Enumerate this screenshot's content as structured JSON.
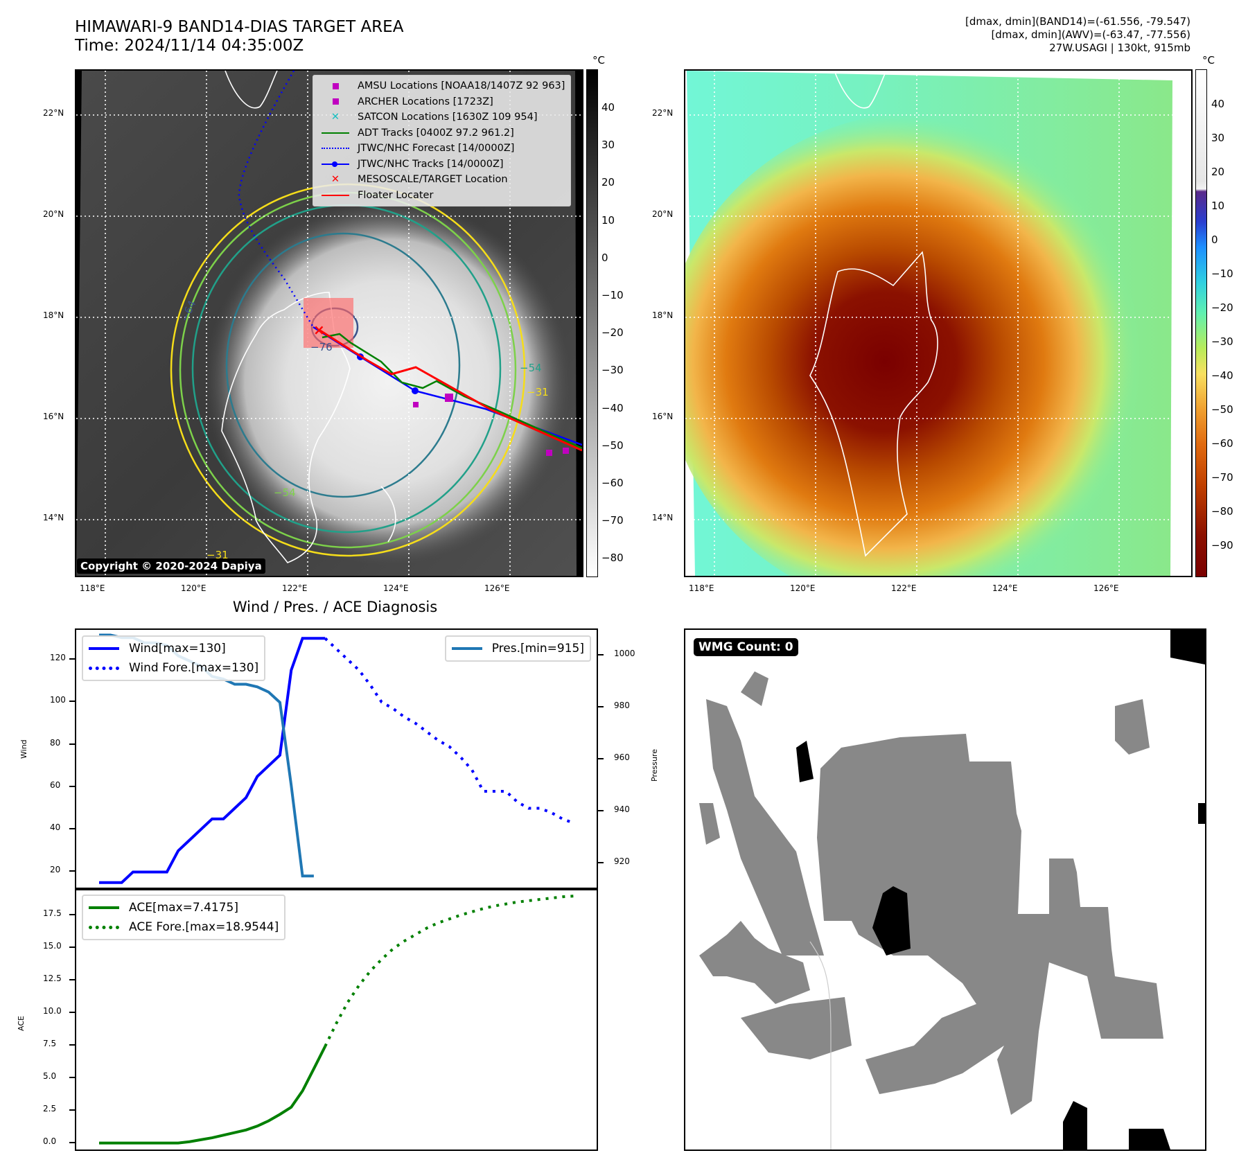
{
  "header": {
    "title_line1": "HIMAWARI-9 BAND14-DIAS TARGET AREA",
    "title_line2": "Time: 2024/11/14 04:35:00Z",
    "info_line1": "[dmax, dmin](BAND14)=(-61.556, -79.547)",
    "info_line2": "[dmax, dmin](AWV)=(-63.47, -77.556)",
    "info_line3": "27W.USAGI | 130kt, 915mb"
  },
  "map_axes": {
    "lat_ticks": [
      "22°N",
      "20°N",
      "18°N",
      "16°N",
      "14°N"
    ],
    "lon_ticks": [
      "118°E",
      "120°E",
      "122°E",
      "124°E",
      "126°E"
    ]
  },
  "ir_panel": {
    "colorbar_unit": "°C",
    "colorbar_ticks": [
      "40",
      "30",
      "20",
      "10",
      "0",
      "−10",
      "−20",
      "−30",
      "−40",
      "−50",
      "−60",
      "−70",
      "−80"
    ],
    "contour_labels": [
      "−64",
      "−76",
      "−31",
      "−54",
      "−31",
      "−54"
    ],
    "copyright": "Copyright © 2020-2024 Dapiya",
    "legend": [
      {
        "icon": "square-marker-icon",
        "color": "#c000c0",
        "label": "AMSU Locations [NOAA18/1407Z 92 963]"
      },
      {
        "icon": "square-marker-icon",
        "color": "#c000c0",
        "label": "ARCHER Locations [1723Z]"
      },
      {
        "icon": "x-marker-icon",
        "color": "#17bfc0",
        "label": "SATCON Locations [1630Z 109 954]"
      },
      {
        "icon": "solid-line-icon",
        "color": "#008000",
        "label": "ADT Tracks [0400Z 97.2 961.2]"
      },
      {
        "icon": "dotted-line-icon",
        "color": "#0000ff",
        "label": "JTWC/NHC Forecast [14/0000Z]"
      },
      {
        "icon": "line-dot-icon",
        "color": "#0000ff",
        "label": "JTWC/NHC Tracks [14/0000Z]"
      },
      {
        "icon": "x-marker-icon",
        "color": "#ff0000",
        "label": "MESOSCALE/TARGET Location"
      },
      {
        "icon": "solid-line-icon",
        "color": "#ff0000",
        "label": "Floater Locater"
      }
    ]
  },
  "awv_panel": {
    "colorbar_unit": "°C",
    "colorbar_ticks": [
      "40",
      "30",
      "20",
      "10",
      "0",
      "−10",
      "−20",
      "−30",
      "−40",
      "−50",
      "−60",
      "−70",
      "−80",
      "−90"
    ]
  },
  "wmg_panel": {
    "badge": "WMG Count: 0"
  },
  "chart_data": [
    {
      "type": "line",
      "title": "Wind / Pres. / ACE Diagnosis",
      "ylabel": "Wind",
      "y2label": "Pressure",
      "ylim": [
        12,
        134
      ],
      "y2lim": [
        910,
        1010
      ],
      "yticks": [
        "120",
        "100",
        "80",
        "60",
        "40",
        "20"
      ],
      "y2ticks": [
        "1000",
        "980",
        "960",
        "940",
        "920"
      ],
      "x": [
        0,
        1,
        2,
        3,
        4,
        5,
        6,
        7,
        8,
        9,
        10,
        11,
        12,
        13,
        14,
        15,
        16,
        17,
        18,
        19,
        20,
        21,
        22,
        23,
        24,
        25,
        26,
        27,
        28,
        29,
        30,
        31,
        32,
        33,
        34,
        35,
        36,
        37,
        38,
        39,
        40,
        41,
        42
      ],
      "series": [
        {
          "name": "Wind[max=130]",
          "axis": "left",
          "style": "solid",
          "color": "#0000ff",
          "x": [
            0,
            1,
            2,
            3,
            4,
            5,
            6,
            7,
            8,
            9,
            10,
            11,
            12,
            13,
            14,
            15,
            16,
            17,
            18,
            19,
            20
          ],
          "values": [
            15,
            15,
            15,
            20,
            20,
            20,
            20,
            30,
            35,
            40,
            45,
            45,
            50,
            55,
            65,
            70,
            75,
            115,
            130,
            130,
            130
          ]
        },
        {
          "name": "Wind Fore.[max=130]",
          "axis": "left",
          "style": "dotted",
          "color": "#0000ff",
          "x": [
            20,
            21,
            22,
            23,
            24,
            25,
            26,
            27,
            28,
            29,
            30,
            31,
            32,
            33,
            34,
            35,
            36,
            37,
            38,
            39,
            40,
            41,
            42
          ],
          "values": [
            130,
            125,
            120,
            115,
            108,
            100,
            97,
            93,
            90,
            86,
            82,
            79,
            74,
            68,
            58,
            58,
            58,
            53,
            50,
            50,
            48,
            45,
            43
          ]
        },
        {
          "name": "Pres.[min=915]",
          "axis": "right",
          "style": "solid",
          "color": "#1f77b4",
          "x": [
            0,
            1,
            2,
            3,
            4,
            5,
            6,
            7,
            8,
            9,
            10,
            11,
            12,
            13,
            14,
            15,
            16,
            17,
            18,
            19
          ],
          "values": [
            1008,
            1008,
            1007,
            1007,
            1005,
            1005,
            1004,
            1000,
            998,
            996,
            992,
            991,
            989,
            989,
            988,
            986,
            982,
            950,
            915,
            915
          ]
        }
      ]
    },
    {
      "type": "line",
      "ylabel": "ACE",
      "ylim": [
        -0.5,
        19.5
      ],
      "yticks": [
        "17.5",
        "15.0",
        "12.5",
        "10.0",
        "7.5",
        "5.0",
        "2.5",
        "0.0"
      ],
      "series": [
        {
          "name": "ACE[max=7.4175]",
          "style": "solid",
          "color": "#008000",
          "x": [
            0,
            1,
            2,
            3,
            4,
            5,
            6,
            7,
            8,
            9,
            10,
            11,
            12,
            13,
            14,
            15,
            16,
            17,
            18,
            19,
            20
          ],
          "values": [
            0,
            0,
            0,
            0,
            0,
            0,
            0,
            0,
            0.1,
            0.25,
            0.4,
            0.6,
            0.8,
            1.0,
            1.3,
            1.7,
            2.2,
            2.75,
            4.0,
            5.7,
            7.4175
          ]
        },
        {
          "name": "ACE Fore.[max=18.9544]",
          "style": "dotted",
          "color": "#008000",
          "x": [
            20,
            21,
            22,
            23,
            24,
            25,
            26,
            27,
            28,
            29,
            30,
            31,
            32,
            33,
            34,
            35,
            36,
            37,
            38,
            39,
            40,
            41,
            42
          ],
          "values": [
            7.4175,
            9.2,
            10.8,
            12.1,
            13.2,
            14.1,
            14.9,
            15.5,
            16.0,
            16.5,
            16.9,
            17.2,
            17.5,
            17.75,
            18.0,
            18.2,
            18.35,
            18.5,
            18.6,
            18.7,
            18.8,
            18.9,
            18.9544
          ]
        }
      ]
    }
  ]
}
